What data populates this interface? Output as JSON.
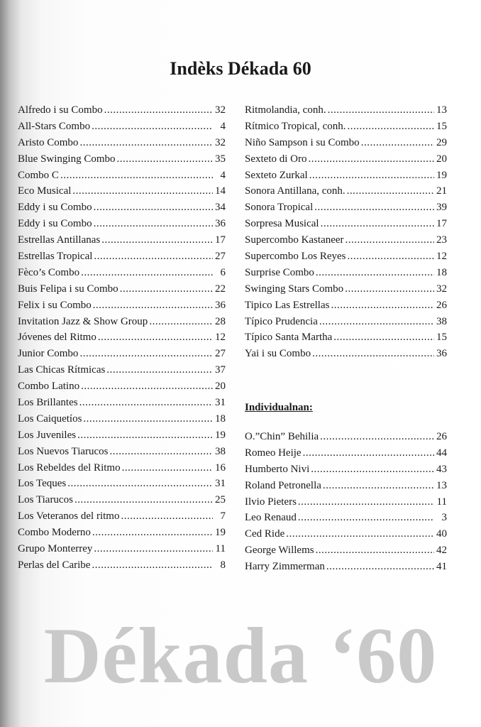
{
  "title": "Indèks Dékada 60",
  "left_column": [
    {
      "name": "Alfredo i su Combo",
      "page": "32"
    },
    {
      "name": "All-Stars Combo",
      "page": "4"
    },
    {
      "name": "Aristo Combo",
      "page": "32"
    },
    {
      "name": "Blue Swinging Combo",
      "page": "35"
    },
    {
      "name": "Combo C",
      "page": "4"
    },
    {
      "name": "Eco Musical",
      "page": "14"
    },
    {
      "name": "Eddy i su Combo",
      "page": "34"
    },
    {
      "name": "Eddy i su Combo",
      "page": "36"
    },
    {
      "name": "Estrellas Antillanas",
      "page": "17"
    },
    {
      "name": "Estrellas Tropical",
      "page": "27"
    },
    {
      "name": "Fèco’s Combo",
      "page": "6"
    },
    {
      "name": "Buis Felipa i su Combo",
      "page": "22"
    },
    {
      "name": "Felix i su Combo",
      "page": "36"
    },
    {
      "name": "Invitation Jazz & Show Group",
      "page": "28"
    },
    {
      "name": "Jóvenes del Ritmo",
      "page": "12"
    },
    {
      "name": "Junior Combo",
      "page": "27"
    },
    {
      "name": "Las Chicas Rítmicas",
      "page": "37"
    },
    {
      "name": "Combo Latino",
      "page": "20"
    },
    {
      "name": "Los Brillantes",
      "page": "31"
    },
    {
      "name": "Los Caiquetíos",
      "page": "18"
    },
    {
      "name": "Los Juveniles",
      "page": "19"
    },
    {
      "name": "Los Nuevos Tiarucos",
      "page": "38"
    },
    {
      "name": "Los Rebeldes del Ritmo",
      "page": "16"
    },
    {
      "name": "Los Teques",
      "page": "31"
    },
    {
      "name": "Los Tiarucos",
      "page": "25"
    },
    {
      "name": "Los Veteranos del ritmo",
      "page": "7"
    },
    {
      "name": "Combo Moderno",
      "page": "19"
    },
    {
      "name": "Grupo Monterrey",
      "page": "11"
    },
    {
      "name": "Perlas del Caribe",
      "page": "8"
    }
  ],
  "right_column": [
    {
      "name": "Ritmolandia, conh.",
      "page": "13"
    },
    {
      "name": "Rítmico Tropical, conh.",
      "page": "15"
    },
    {
      "name": "Niño Sampson i su Combo",
      "page": "29"
    },
    {
      "name": "Sexteto di Oro",
      "page": "20"
    },
    {
      "name": "Sexteto Zurkal",
      "page": "19"
    },
    {
      "name": "Sonora Antillana, conh.",
      "page": "21"
    },
    {
      "name": "Sonora Tropical",
      "page": "39"
    },
    {
      "name": "Sorpresa Musical",
      "page": "17"
    },
    {
      "name": "Supercombo Kastaneer",
      "page": "23"
    },
    {
      "name": "Supercombo Los Reyes",
      "page": "12"
    },
    {
      "name": "Surprise Combo",
      "page": "18"
    },
    {
      "name": "Swinging Stars Combo",
      "page": "32"
    },
    {
      "name": "Tipico Las Estrellas",
      "page": "26"
    },
    {
      "name": "Típico Prudencia",
      "page": "38"
    },
    {
      "name": "Típico Santa Martha",
      "page": "15"
    },
    {
      "name": "Yai i su Combo",
      "page": "36"
    }
  ],
  "individuals_heading": "Individualnan:",
  "individuals": [
    {
      "name": "O.”Chin” Behilia",
      "page": "26"
    },
    {
      "name": "Romeo Heije",
      "page": "44"
    },
    {
      "name": "Humberto Nivi",
      "page": "43"
    },
    {
      "name": "Roland Petronella",
      "page": "13"
    },
    {
      "name": "Ilvio Pieters",
      "page": "11"
    },
    {
      "name": "Leo Renaud",
      "page": "3"
    },
    {
      "name": "Ced Ride",
      "page": "40"
    },
    {
      "name": "George Willems",
      "page": "42"
    },
    {
      "name": "Harry Zimmerman",
      "page": "41"
    }
  ],
  "watermark": "Dékada ‘60",
  "colors": {
    "text": "#1a1a1a",
    "watermark": "#c9c9c9"
  }
}
